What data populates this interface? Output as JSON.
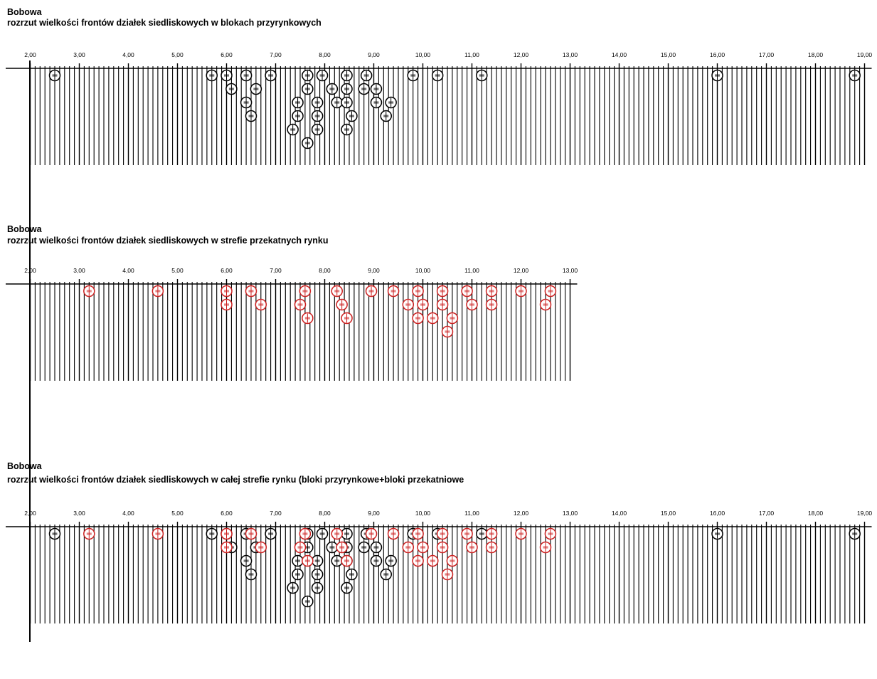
{
  "chart_data": [
    {
      "type": "scatter",
      "title": "Bobowa",
      "subtitle": "rozrzut wielkości frontów działek siedliskowych w blokach przyrynkowych",
      "xlim": [
        2.0,
        19.0
      ],
      "x_ticks": [
        "2,00",
        "3,00",
        "4,00",
        "5,00",
        "6,00",
        "7,00",
        "8,00",
        "9,00",
        "10,00",
        "11,00",
        "12,00",
        "13,00",
        "14,00",
        "15,00",
        "16,00",
        "17,00",
        "18,00",
        "19,00"
      ],
      "series": [
        {
          "color": "#000000",
          "points": [
            {
              "x": 2.5,
              "row": 0
            },
            {
              "x": 5.7,
              "row": 0
            },
            {
              "x": 6.0,
              "row": 0
            },
            {
              "x": 6.4,
              "row": 0
            },
            {
              "x": 6.9,
              "row": 0
            },
            {
              "x": 7.65,
              "row": 0
            },
            {
              "x": 7.95,
              "row": 0
            },
            {
              "x": 8.45,
              "row": 0
            },
            {
              "x": 8.85,
              "row": 0
            },
            {
              "x": 9.8,
              "row": 0
            },
            {
              "x": 10.3,
              "row": 0
            },
            {
              "x": 11.2,
              "row": 0
            },
            {
              "x": 16.0,
              "row": 0
            },
            {
              "x": 18.8,
              "row": 0
            },
            {
              "x": 6.1,
              "row": 1
            },
            {
              "x": 6.6,
              "row": 1
            },
            {
              "x": 7.65,
              "row": 1
            },
            {
              "x": 8.15,
              "row": 1
            },
            {
              "x": 8.45,
              "row": 1
            },
            {
              "x": 8.8,
              "row": 1
            },
            {
              "x": 9.05,
              "row": 1
            },
            {
              "x": 6.4,
              "row": 2
            },
            {
              "x": 7.45,
              "row": 2
            },
            {
              "x": 7.85,
              "row": 2
            },
            {
              "x": 8.25,
              "row": 2
            },
            {
              "x": 8.45,
              "row": 2
            },
            {
              "x": 9.05,
              "row": 2
            },
            {
              "x": 9.35,
              "row": 2
            },
            {
              "x": 6.5,
              "row": 3
            },
            {
              "x": 7.45,
              "row": 3
            },
            {
              "x": 7.85,
              "row": 3
            },
            {
              "x": 8.55,
              "row": 3
            },
            {
              "x": 9.25,
              "row": 3
            },
            {
              "x": 7.35,
              "row": 4
            },
            {
              "x": 7.85,
              "row": 4
            },
            {
              "x": 8.45,
              "row": 4
            },
            {
              "x": 7.65,
              "row": 5
            }
          ]
        }
      ]
    },
    {
      "type": "scatter",
      "title": "Bobowa",
      "subtitle": "rozrzut wielkości frontów działek siedliskowych w strefie przekatnych rynku",
      "xlim": [
        2.0,
        13.0
      ],
      "x_ticks": [
        "2,00",
        "3,00",
        "4,00",
        "5,00",
        "6,00",
        "7,00",
        "8,00",
        "9,00",
        "10,00",
        "11,00",
        "12,00",
        "13,00"
      ],
      "series": [
        {
          "color": "#cc2222",
          "points": [
            {
              "x": 3.2,
              "row": 0
            },
            {
              "x": 4.6,
              "row": 0
            },
            {
              "x": 6.0,
              "row": 0
            },
            {
              "x": 6.5,
              "row": 0
            },
            {
              "x": 7.6,
              "row": 0
            },
            {
              "x": 8.25,
              "row": 0
            },
            {
              "x": 8.95,
              "row": 0
            },
            {
              "x": 9.4,
              "row": 0
            },
            {
              "x": 9.9,
              "row": 0
            },
            {
              "x": 10.4,
              "row": 0
            },
            {
              "x": 10.9,
              "row": 0
            },
            {
              "x": 11.4,
              "row": 0
            },
            {
              "x": 12.0,
              "row": 0
            },
            {
              "x": 12.6,
              "row": 0
            },
            {
              "x": 6.0,
              "row": 1
            },
            {
              "x": 6.7,
              "row": 1
            },
            {
              "x": 7.5,
              "row": 1
            },
            {
              "x": 8.35,
              "row": 1
            },
            {
              "x": 9.7,
              "row": 1
            },
            {
              "x": 10.0,
              "row": 1
            },
            {
              "x": 10.4,
              "row": 1
            },
            {
              "x": 11.0,
              "row": 1
            },
            {
              "x": 11.4,
              "row": 1
            },
            {
              "x": 12.5,
              "row": 1
            },
            {
              "x": 7.65,
              "row": 2
            },
            {
              "x": 8.45,
              "row": 2
            },
            {
              "x": 9.9,
              "row": 2
            },
            {
              "x": 10.2,
              "row": 2
            },
            {
              "x": 10.6,
              "row": 2
            },
            {
              "x": 10.5,
              "row": 3
            }
          ]
        }
      ]
    },
    {
      "type": "scatter",
      "title": "Bobowa",
      "subtitle": "rozrzut wielkości frontów działek siedliskowych w całej strefie rynku (bloki przyrynkowe+bloki przekatniowe",
      "xlim": [
        2.0,
        19.0
      ],
      "x_ticks": [
        "2,00",
        "3,00",
        "4,00",
        "5,00",
        "6,00",
        "7,00",
        "8,00",
        "9,00",
        "10,00",
        "11,00",
        "12,00",
        "13,00",
        "14,00",
        "15,00",
        "16,00",
        "17,00",
        "18,00",
        "19,00"
      ],
      "series": [
        {
          "color": "#000000",
          "points": [
            {
              "x": 2.5,
              "row": 0
            },
            {
              "x": 5.7,
              "row": 0
            },
            {
              "x": 6.0,
              "row": 0
            },
            {
              "x": 6.4,
              "row": 0
            },
            {
              "x": 6.9,
              "row": 0
            },
            {
              "x": 7.65,
              "row": 0
            },
            {
              "x": 7.95,
              "row": 0
            },
            {
              "x": 8.45,
              "row": 0
            },
            {
              "x": 8.85,
              "row": 0
            },
            {
              "x": 9.8,
              "row": 0
            },
            {
              "x": 10.3,
              "row": 0
            },
            {
              "x": 11.2,
              "row": 0
            },
            {
              "x": 16.0,
              "row": 0
            },
            {
              "x": 18.8,
              "row": 0
            },
            {
              "x": 6.1,
              "row": 1
            },
            {
              "x": 6.6,
              "row": 1
            },
            {
              "x": 7.65,
              "row": 1
            },
            {
              "x": 8.15,
              "row": 1
            },
            {
              "x": 8.45,
              "row": 1
            },
            {
              "x": 8.8,
              "row": 1
            },
            {
              "x": 9.05,
              "row": 1
            },
            {
              "x": 6.4,
              "row": 2
            },
            {
              "x": 7.45,
              "row": 2
            },
            {
              "x": 7.85,
              "row": 2
            },
            {
              "x": 8.25,
              "row": 2
            },
            {
              "x": 8.45,
              "row": 2
            },
            {
              "x": 9.05,
              "row": 2
            },
            {
              "x": 9.35,
              "row": 2
            },
            {
              "x": 6.5,
              "row": 3
            },
            {
              "x": 7.45,
              "row": 3
            },
            {
              "x": 7.85,
              "row": 3
            },
            {
              "x": 8.55,
              "row": 3
            },
            {
              "x": 9.25,
              "row": 3
            },
            {
              "x": 7.35,
              "row": 4
            },
            {
              "x": 7.85,
              "row": 4
            },
            {
              "x": 8.45,
              "row": 4
            },
            {
              "x": 7.65,
              "row": 5
            }
          ]
        },
        {
          "color": "#cc2222",
          "points": [
            {
              "x": 3.2,
              "row": 0
            },
            {
              "x": 4.6,
              "row": 0
            },
            {
              "x": 6.0,
              "row": 0
            },
            {
              "x": 6.5,
              "row": 0
            },
            {
              "x": 7.6,
              "row": 0
            },
            {
              "x": 8.25,
              "row": 0
            },
            {
              "x": 8.95,
              "row": 0
            },
            {
              "x": 9.4,
              "row": 0
            },
            {
              "x": 9.9,
              "row": 0
            },
            {
              "x": 10.4,
              "row": 0
            },
            {
              "x": 10.9,
              "row": 0
            },
            {
              "x": 11.4,
              "row": 0
            },
            {
              "x": 12.0,
              "row": 0
            },
            {
              "x": 12.6,
              "row": 0
            },
            {
              "x": 6.0,
              "row": 1
            },
            {
              "x": 6.7,
              "row": 1
            },
            {
              "x": 7.5,
              "row": 1
            },
            {
              "x": 8.35,
              "row": 1
            },
            {
              "x": 9.7,
              "row": 1
            },
            {
              "x": 10.0,
              "row": 1
            },
            {
              "x": 10.4,
              "row": 1
            },
            {
              "x": 11.0,
              "row": 1
            },
            {
              "x": 11.4,
              "row": 1
            },
            {
              "x": 12.5,
              "row": 1
            },
            {
              "x": 7.65,
              "row": 2
            },
            {
              "x": 8.45,
              "row": 2
            },
            {
              "x": 9.9,
              "row": 2
            },
            {
              "x": 10.2,
              "row": 2
            },
            {
              "x": 10.6,
              "row": 2
            },
            {
              "x": 10.5,
              "row": 3
            }
          ]
        }
      ]
    }
  ]
}
